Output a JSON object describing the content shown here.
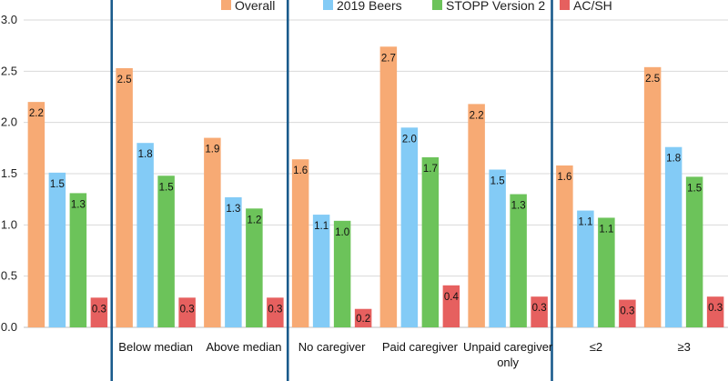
{
  "chart_data": {
    "type": "bar",
    "title": "",
    "xlabel": "",
    "ylabel": "",
    "ylim": [
      0,
      3.0
    ],
    "yticks": [
      "0.0",
      "0.5",
      "1.0",
      "1.5",
      "2.0",
      "2.5",
      "3.0"
    ],
    "grid": true,
    "legend_position": "top",
    "categories": [
      "",
      "Below median",
      "Above median",
      "No caregiver",
      "Paid caregiver",
      "Unpaid caregiver only",
      "≤2",
      "≥3"
    ],
    "category_lines": [
      [
        ""
      ],
      [
        "Below median"
      ],
      [
        "Above median"
      ],
      [
        "No caregiver"
      ],
      [
        "Paid caregiver"
      ],
      [
        "Unpaid caregiver",
        "only"
      ],
      [
        "≤2"
      ],
      [
        "≥3"
      ]
    ],
    "group_separators_after_index": [
      0,
      2,
      5
    ],
    "series": [
      {
        "name": "Overall",
        "color": "#F7AA74",
        "values": [
          2.2,
          2.53,
          1.85,
          1.64,
          2.74,
          2.18,
          1.58,
          2.54
        ],
        "labels": [
          "2.2",
          "2.5",
          "1.9",
          "1.6",
          "2.7",
          "2.2",
          "1.6",
          "2.5"
        ]
      },
      {
        "name": "2019 Beers",
        "color": "#83CBF6",
        "values": [
          1.51,
          1.8,
          1.27,
          1.1,
          1.95,
          1.54,
          1.14,
          1.76
        ],
        "labels": [
          "1.5",
          "1.8",
          "1.3",
          "1.1",
          "2.0",
          "1.5",
          "1.1",
          "1.8"
        ]
      },
      {
        "name": "STOPP Version 2",
        "color": "#6CC35A",
        "values": [
          1.31,
          1.48,
          1.16,
          1.04,
          1.66,
          1.3,
          1.07,
          1.47
        ],
        "labels": [
          "1.3",
          "1.5",
          "1.2",
          "1.0",
          "1.7",
          "1.3",
          "1.1",
          "1.5"
        ]
      },
      {
        "name": "AC/SH",
        "color": "#E6605F",
        "values": [
          0.29,
          0.29,
          0.29,
          0.18,
          0.41,
          0.3,
          0.27,
          0.3
        ],
        "labels": [
          "0.3",
          "0.3",
          "0.3",
          "0.2",
          "0.4",
          "0.3",
          "0.3",
          "0.3"
        ]
      }
    ]
  }
}
